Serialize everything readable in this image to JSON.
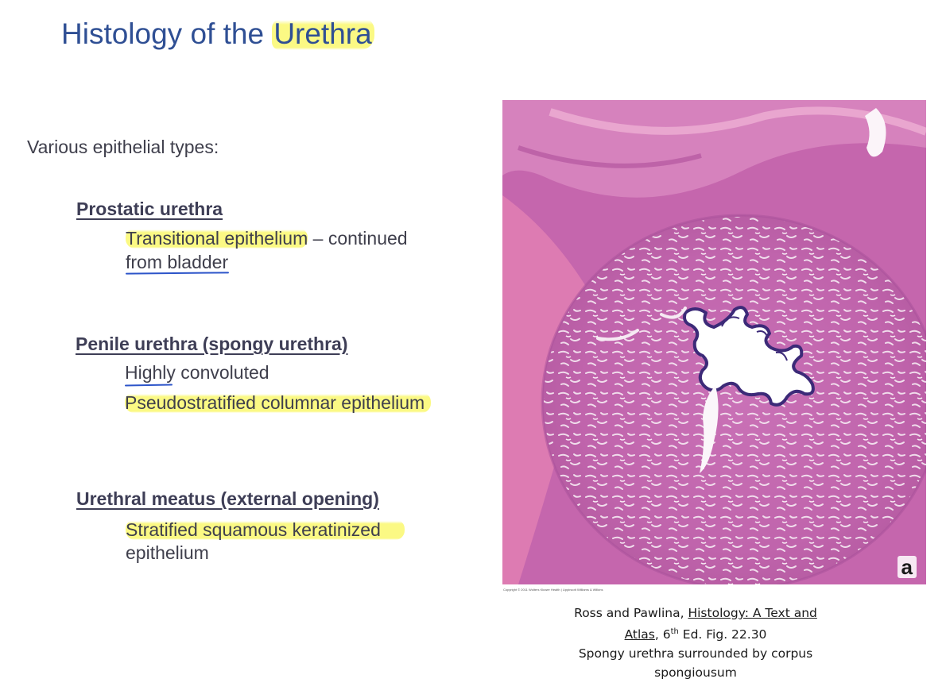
{
  "title": {
    "prefix": "Histology of the ",
    "highlight": "Urethra"
  },
  "intro": "Various epithelial types:",
  "sections": [
    {
      "heading": "Prostatic urethra",
      "lines": [
        {
          "hl": "Transitional epithelium",
          "rest": " – continued"
        },
        {
          "text": "from bladder"
        }
      ]
    },
    {
      "heading": "Penile urethra (spongy urethra)",
      "lines": [
        {
          "text": "Highly convoluted"
        },
        {
          "hl": "Pseudostratified columnar epithelium"
        }
      ]
    },
    {
      "heading": "Urethral meatus (external opening)",
      "lines": [
        {
          "hl": "Stratified squamous keratinized"
        },
        {
          "text": "epithelium"
        }
      ]
    }
  ],
  "figure": {
    "panel_letter": "a",
    "copyright": "Copyright © 2011 Wolters Kluwer Health | Lippincott Williams & Wilkins"
  },
  "caption": {
    "authors": "Ross and Pawlina, ",
    "book_title_1": "Histology: A Text and",
    "book_title_2": "Atlas",
    "edition_pre": ", 6",
    "edition_sup": "th",
    "edition_post": " Ed. Fig. 22.30",
    "description": "Spongy urethra surrounded by corpus spongiousum"
  },
  "colors": {
    "title": "#2f4f94",
    "highlight": "#f8f66e",
    "ink_underline": "#2c54c9",
    "tissue_pink": "#c566ad",
    "tissue_light": "#e08fb8"
  }
}
